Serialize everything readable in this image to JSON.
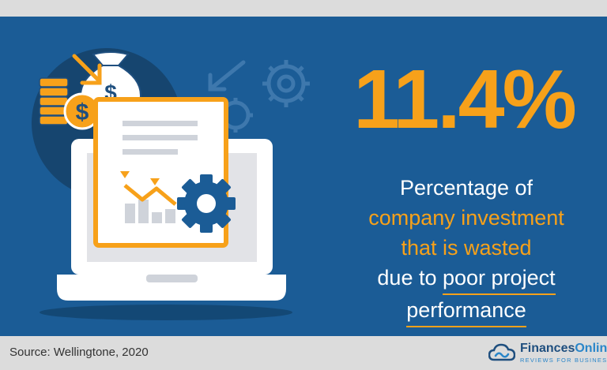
{
  "stat": {
    "value": "11.4%"
  },
  "caption": {
    "line1": "Percentage of",
    "line2": "company investment",
    "line3": "that is wasted",
    "line4_plain": "due to",
    "line4_highlight": "poor project",
    "line5_highlight": "performance"
  },
  "footer": {
    "source": "Source: Wellingtone, 2020",
    "brand_part1": "Finances",
    "brand_part2": "Online",
    "brand_tagline": "REVIEWS FOR BUSINESS"
  },
  "colors": {
    "panel_bg": "#1b5c96",
    "accent": "#f7a11a",
    "band": "#dcdcdc",
    "text_white": "#ffffff",
    "brand_dark": "#1f4f7f",
    "brand_light": "#2a86c9"
  },
  "icons": [
    "money-bag-icon",
    "coin-stack-icon",
    "dollar-coin-icon",
    "down-arrow-icon",
    "gear-icon",
    "laptop-icon",
    "report-document-icon",
    "declining-chart-icon",
    "financesonline-logo-icon"
  ]
}
